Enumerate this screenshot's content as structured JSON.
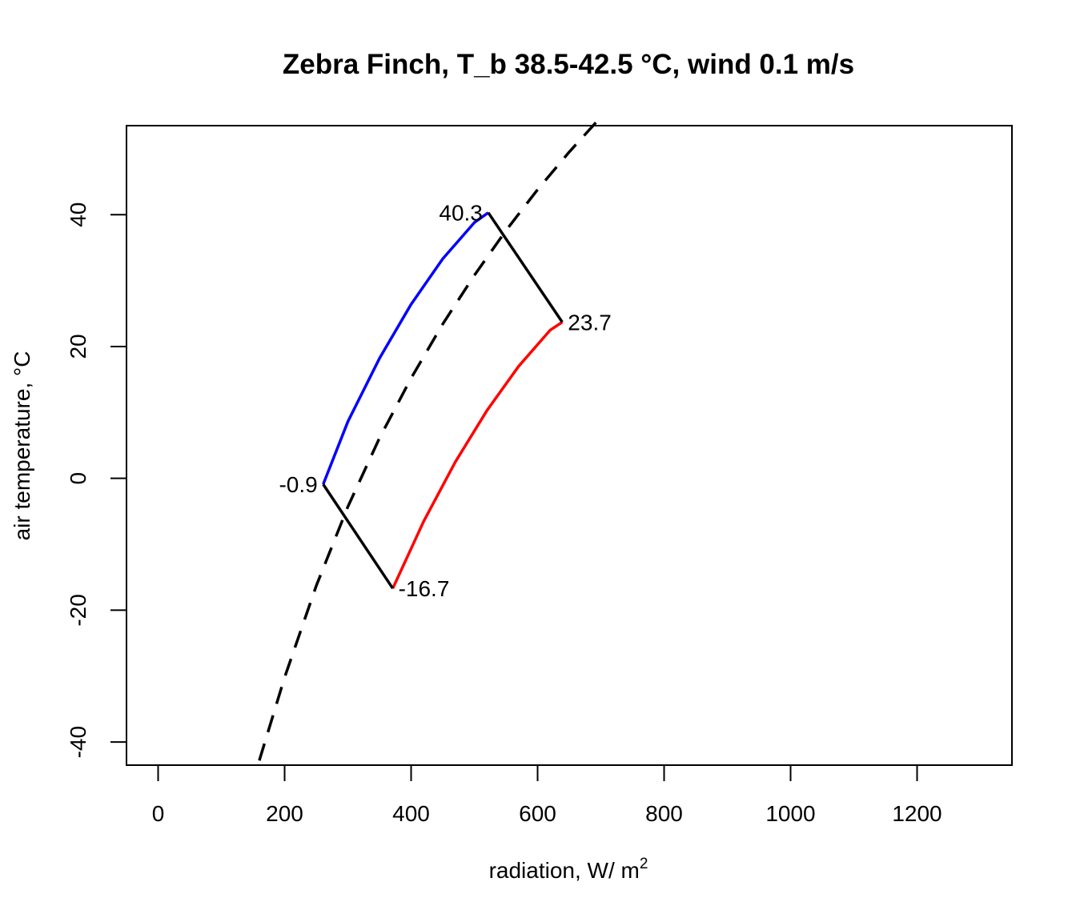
{
  "chart_data": {
    "type": "line",
    "title": "Zebra Finch, T_b 38.5-42.5 °C, wind 0.1 m/s",
    "xlabel": "radiation, W/ m",
    "xlabel_superscript": "2",
    "ylabel": "air temperature, °C",
    "xlim": [
      -50,
      1350
    ],
    "ylim": [
      -43.5,
      53.5
    ],
    "xticks": [
      0,
      200,
      400,
      600,
      800,
      1000,
      1200
    ],
    "yticks": [
      -40,
      -20,
      0,
      20,
      40
    ],
    "grid": false,
    "legend": "none",
    "series": [
      {
        "color": "#0000ff",
        "style": "solid",
        "x": [
          261,
          300,
          350,
          400,
          450,
          500,
          522
        ],
        "y": [
          -0.9,
          8.6,
          18.2,
          26.4,
          33.3,
          38.8,
          40.3
        ]
      },
      {
        "color": "#ff0000",
        "style": "solid",
        "x": [
          371,
          420,
          470,
          520,
          570,
          620,
          639
        ],
        "y": [
          -16.7,
          -6.5,
          2.5,
          10.3,
          17.0,
          22.5,
          23.7
        ]
      },
      {
        "color": "#000000",
        "style": "solid",
        "x": [
          522,
          639
        ],
        "y": [
          40.3,
          23.7
        ]
      },
      {
        "color": "#000000",
        "style": "solid",
        "x": [
          261,
          371
        ],
        "y": [
          -0.9,
          -16.7
        ]
      },
      {
        "color": "#000000",
        "style": "dashed",
        "x": [
          160,
          200,
          250,
          300,
          350,
          400,
          450,
          500,
          550,
          600,
          650,
          700
        ],
        "y": [
          -42.8,
          -30.2,
          -16.3,
          -4.3,
          6.1,
          15.2,
          23.4,
          30.8,
          37.6,
          43.8,
          49.5,
          54.8
        ]
      }
    ],
    "annotations": [
      {
        "text": "40.3",
        "x": 522,
        "y": 40.3,
        "anchor": "end"
      },
      {
        "text": "23.7",
        "x": 639,
        "y": 23.7,
        "anchor": "start"
      },
      {
        "text": "-0.9",
        "x": 261,
        "y": -0.9,
        "anchor": "end"
      },
      {
        "text": "-16.7",
        "x": 371,
        "y": -16.7,
        "anchor": "start"
      }
    ]
  }
}
